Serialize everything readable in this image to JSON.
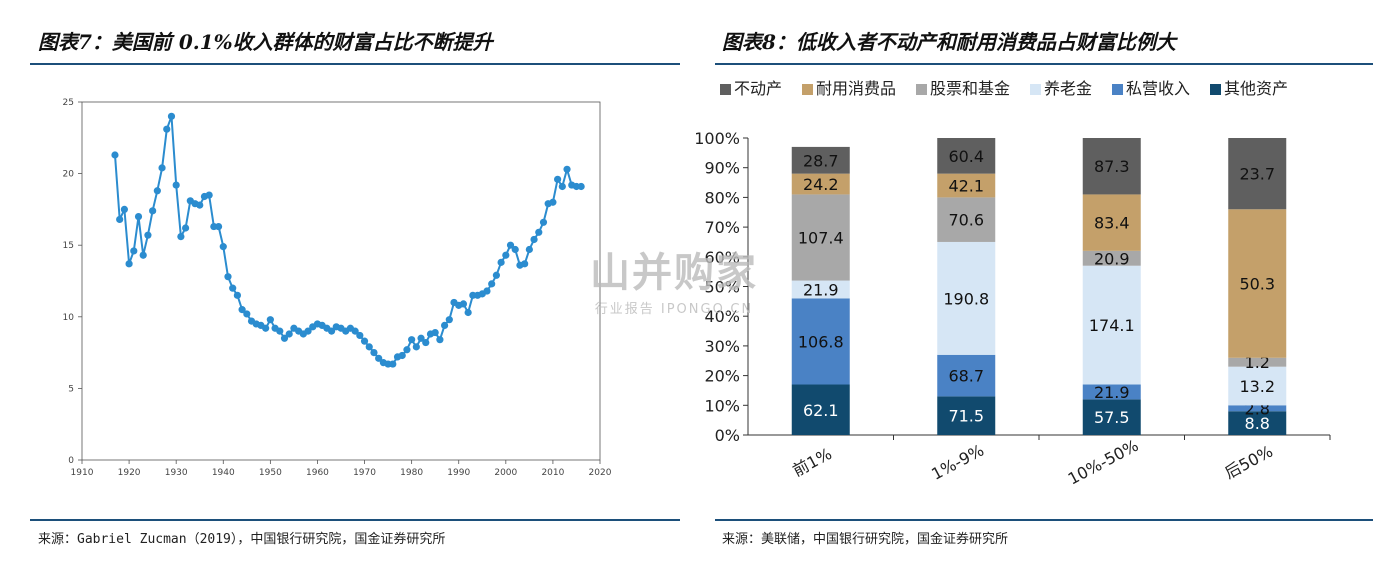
{
  "header_fragment": "",
  "left": {
    "title": "图表7：美国前 0.1%收入群体的财富占比不断提升",
    "source": "来源：Gabriel Zucman（2019），中国银行研究院，国金证券研究所"
  },
  "right": {
    "title": "图表8：低收入者不动产和耐用消费品占财富比例大",
    "source": "来源：美联储，中国银行研究院，国金证券研究所"
  },
  "watermark": {
    "main": "山并购家",
    "sub": "行业报告 IPONGO.CN"
  },
  "colors": {
    "rule": "#1c4f7a",
    "line": "#2b8ccf",
    "不动产": "#5f5f5f",
    "耐用消费品": "#c4a06a",
    "股票和基金": "#a8a8a8",
    "养老金": "#d6e6f5",
    "私营收入": "#4a82c5",
    "其他资产": "#114a6e"
  },
  "chart_data": [
    {
      "type": "line",
      "title": "",
      "xlabel": "",
      "ylabel": "",
      "xlim": [
        1910,
        2020
      ],
      "ylim": [
        0,
        25
      ],
      "xticks": [
        1910,
        1920,
        1930,
        1940,
        1950,
        1960,
        1970,
        1980,
        1990,
        2000,
        2010,
        2020
      ],
      "yticks": [
        0,
        5,
        10,
        15,
        20,
        25
      ],
      "series": [
        {
          "x": [
            1917,
            1918,
            1919,
            1920,
            1921,
            1922,
            1923,
            1924,
            1925,
            1926,
            1927,
            1928,
            1929,
            1930,
            1931,
            1932,
            1933,
            1934,
            1935,
            1936,
            1937,
            1938,
            1939,
            1940,
            1941,
            1942,
            1943,
            1944,
            1945,
            1946,
            1947,
            1948,
            1949,
            1950,
            1951,
            1952,
            1953,
            1954,
            1955,
            1956,
            1957,
            1958,
            1959,
            1960,
            1961,
            1962,
            1963,
            1964,
            1965,
            1966,
            1967,
            1968,
            1969,
            1970,
            1971,
            1972,
            1973,
            1974,
            1975,
            1976,
            1977,
            1978,
            1979,
            1980,
            1981,
            1982,
            1983,
            1984,
            1985,
            1986,
            1987,
            1988,
            1989,
            1990,
            1991,
            1992,
            1993,
            1994,
            1995,
            1996,
            1997,
            1998,
            1999,
            2000,
            2001,
            2002,
            2003,
            2004,
            2005,
            2006,
            2007,
            2008,
            2009,
            2010,
            2011,
            2012,
            2013,
            2014,
            2015,
            2016
          ],
          "values": [
            21.3,
            16.8,
            17.5,
            13.7,
            14.6,
            17.0,
            14.3,
            15.7,
            17.4,
            18.8,
            20.4,
            23.1,
            24.0,
            19.2,
            15.6,
            16.2,
            18.1,
            17.9,
            17.8,
            18.4,
            18.5,
            16.3,
            16.3,
            14.9,
            12.8,
            12.0,
            11.5,
            10.5,
            10.2,
            9.7,
            9.5,
            9.4,
            9.2,
            9.8,
            9.2,
            9.0,
            8.5,
            8.8,
            9.2,
            9.0,
            8.8,
            9.0,
            9.3,
            9.5,
            9.4,
            9.2,
            9.0,
            9.3,
            9.2,
            9.0,
            9.2,
            9.0,
            8.7,
            8.3,
            7.9,
            7.5,
            7.1,
            6.8,
            6.7,
            6.7,
            7.2,
            7.3,
            7.7,
            8.4,
            7.9,
            8.5,
            8.2,
            8.8,
            8.9,
            8.4,
            9.4,
            9.8,
            11.0,
            10.8,
            10.9,
            10.3,
            11.5,
            11.5,
            11.6,
            11.8,
            12.3,
            12.9,
            13.8,
            14.3,
            15.0,
            14.7,
            13.6,
            13.7,
            14.7,
            15.4,
            15.9,
            16.6,
            17.9,
            18.0,
            19.6,
            19.1,
            20.3,
            19.2,
            19.1,
            19.1
          ]
        }
      ]
    },
    {
      "type": "bar",
      "stacked": true,
      "title": "",
      "categories": [
        "前1%",
        "1%-9%",
        "10%-50%",
        "后50%"
      ],
      "yticks": [
        "0%",
        "10%",
        "20%",
        "30%",
        "40%",
        "50%",
        "60%",
        "70%",
        "80%",
        "90%",
        "100%"
      ],
      "legend_position": "top",
      "series": [
        {
          "name": "其他资产",
          "values": [
            62.1,
            71.5,
            57.5,
            8.8
          ],
          "heights": [
            0.17,
            0.13,
            0.12,
            0.08
          ]
        },
        {
          "name": "私营收入",
          "values": [
            106.8,
            68.7,
            21.9,
            2.8
          ],
          "heights": [
            0.29,
            0.14,
            0.05,
            0.02
          ]
        },
        {
          "name": "养老金",
          "values": [
            21.9,
            190.8,
            174.1,
            13.2
          ],
          "heights": [
            0.06,
            0.38,
            0.4,
            0.13
          ]
        },
        {
          "name": "股票和基金",
          "values": [
            107.4,
            70.6,
            20.9,
            1.2
          ],
          "heights": [
            0.29,
            0.15,
            0.05,
            0.03
          ]
        },
        {
          "name": "耐用消费品",
          "values": [
            24.2,
            42.1,
            83.4,
            50.3
          ],
          "heights": [
            0.07,
            0.08,
            0.19,
            0.5
          ]
        },
        {
          "name": "不动产",
          "values": [
            28.7,
            60.4,
            87.3,
            23.7
          ],
          "heights": [
            0.09,
            0.12,
            0.19,
            0.24
          ]
        }
      ],
      "legend_order": [
        "不动产",
        "耐用消费品",
        "股票和基金",
        "养老金",
        "私营收入",
        "其他资产"
      ]
    }
  ]
}
